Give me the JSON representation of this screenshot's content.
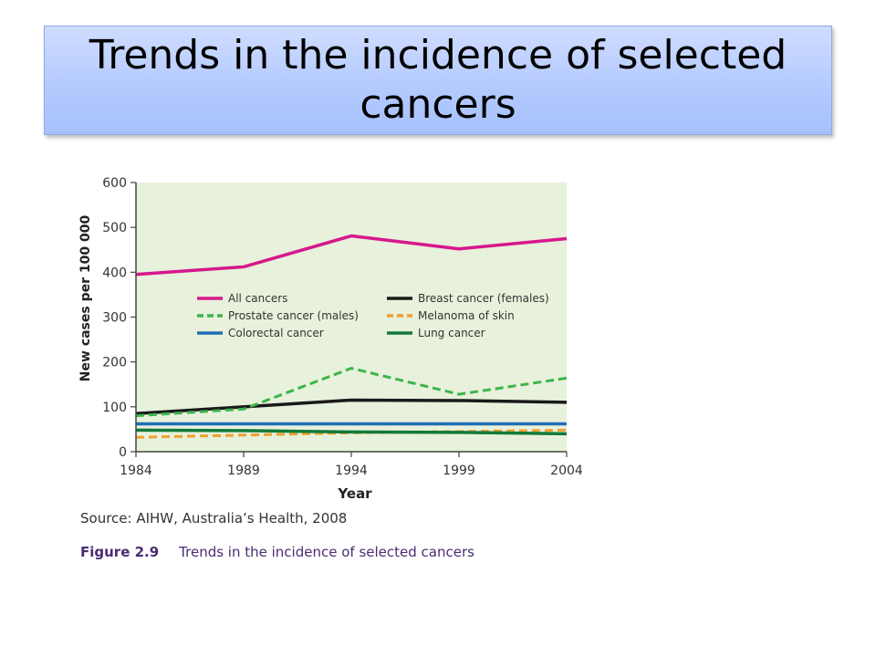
{
  "slide": {
    "title": "Trends in the incidence of selected cancers"
  },
  "figure": {
    "source": "Source: AIHW, Australia’s Health, 2008",
    "figure_label": "Figure 2.9",
    "caption": "Trends in the incidence of selected cancers"
  },
  "chart_data": {
    "type": "line",
    "title": "",
    "xlabel": "Year",
    "ylabel": "New cases per 100 000",
    "x": [
      1984,
      1989,
      1994,
      1999,
      2004
    ],
    "xlim": [
      1984,
      2004
    ],
    "ylim": [
      0,
      600
    ],
    "x_ticks": [
      "1984",
      "1989",
      "1994",
      "1999",
      "2004"
    ],
    "y_ticks": [
      "0",
      "100",
      "200",
      "300",
      "400",
      "500",
      "600"
    ],
    "plot_background": "#e8f1dc",
    "legend_position": "center-left",
    "series": [
      {
        "name": "All cancers",
        "color": "#d6188c",
        "dash": "solid",
        "values": [
          395,
          412,
          481,
          452,
          475
        ]
      },
      {
        "name": "Breast cancer (females)",
        "color": "#1a1a1a",
        "dash": "solid",
        "values": [
          85,
          100,
          115,
          114,
          110
        ]
      },
      {
        "name": "Prostate cancer (males)",
        "color": "#3cb54a",
        "dash": "dashed",
        "values": [
          80,
          95,
          186,
          128,
          164
        ]
      },
      {
        "name": "Melanoma of skin",
        "color": "#f0a030",
        "dash": "dashed",
        "values": [
          32,
          37,
          42,
          45,
          48
        ]
      },
      {
        "name": "Colorectal cancer",
        "color": "#1f6fb4",
        "dash": "solid",
        "values": [
          62,
          62,
          62,
          62,
          62
        ]
      },
      {
        "name": "Lung cancer",
        "color": "#127a3a",
        "dash": "solid",
        "values": [
          48,
          47,
          44,
          43,
          40
        ]
      }
    ]
  }
}
